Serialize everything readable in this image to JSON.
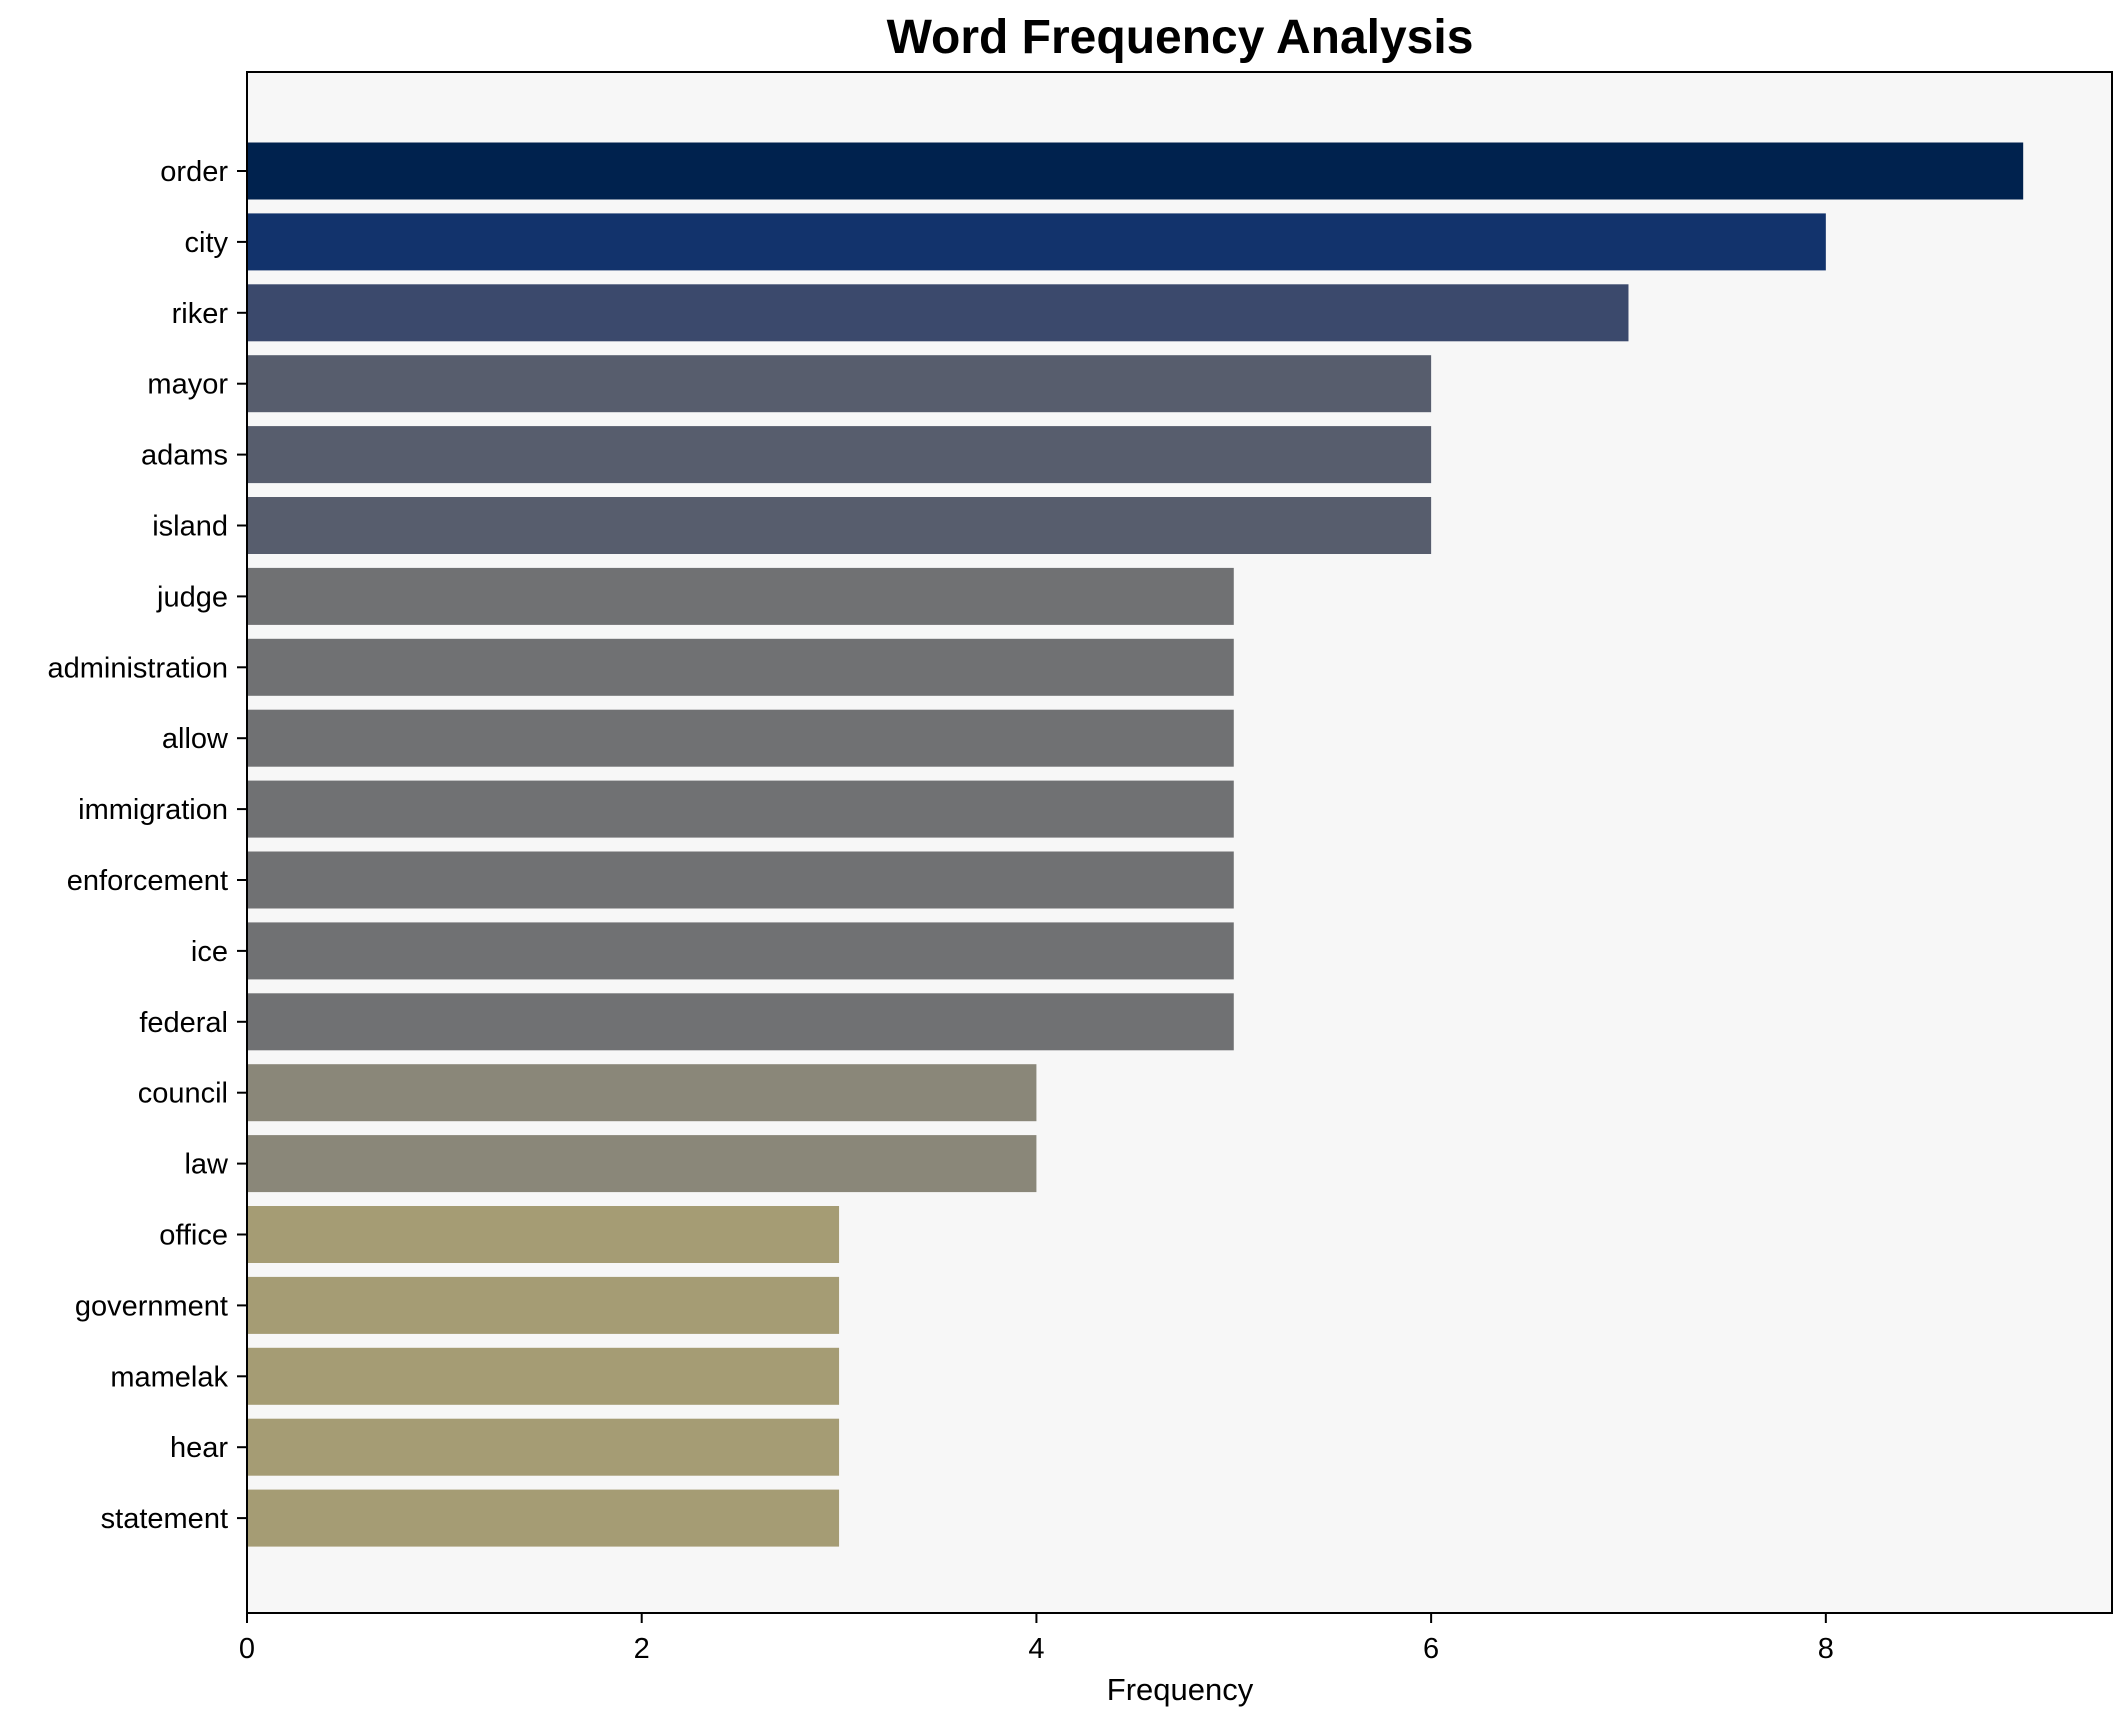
{
  "chart_data": {
    "type": "bar",
    "orientation": "horizontal",
    "title": "Word Frequency Analysis",
    "xlabel": "Frequency",
    "ylabel": "",
    "xlim": [
      0,
      9.45
    ],
    "xticks": [
      0,
      2,
      4,
      6,
      8
    ],
    "grid": false,
    "background": "#f7f7f7",
    "categories": [
      "order",
      "city",
      "riker",
      "mayor",
      "adams",
      "island",
      "judge",
      "administration",
      "allow",
      "immigration",
      "enforcement",
      "ice",
      "federal",
      "council",
      "law",
      "office",
      "government",
      "mamelak",
      "hear",
      "statement"
    ],
    "values": [
      9,
      8,
      7,
      6,
      6,
      6,
      5,
      5,
      5,
      5,
      5,
      5,
      5,
      4,
      4,
      3,
      3,
      3,
      3,
      3
    ],
    "colors": [
      "#00224e",
      "#12336c",
      "#3b496c",
      "#575d6d",
      "#575d6d",
      "#575d6d",
      "#707173",
      "#707173",
      "#707173",
      "#707173",
      "#707173",
      "#707173",
      "#707173",
      "#8a8779",
      "#8a8779",
      "#a59c74",
      "#a59c74",
      "#a59c74",
      "#a59c74",
      "#a59c74"
    ]
  }
}
